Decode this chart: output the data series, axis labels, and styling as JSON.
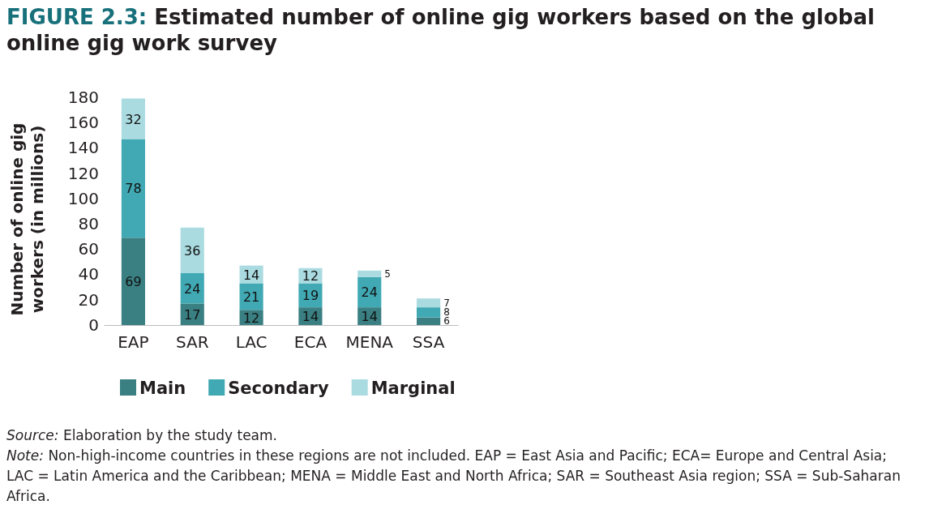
{
  "chart_data": {
    "type": "bar",
    "title": "FIGURE 2.3: Estimated number of online gig workers based on the global online gig work survey",
    "ylabel": "Number of online gig workers (in millions)",
    "categories": [
      "EAP",
      "SAR",
      "LAC",
      "ECA",
      "MENA",
      "SSA"
    ],
    "stacked": true,
    "data_labels": true,
    "legend": "bottom",
    "grid": false,
    "series": [
      {
        "name": "Main",
        "color": "#3a7f82",
        "values": [
          69,
          17,
          12,
          14,
          14,
          6
        ]
      },
      {
        "name": "Secondary",
        "color": "#41a9b4",
        "values": [
          78,
          24,
          21,
          19,
          24,
          8
        ]
      },
      {
        "name": "Marginal",
        "color": "#aadbe1",
        "values": [
          32,
          36,
          14,
          12,
          5,
          7
        ]
      }
    ],
    "ylim": [
      0,
      180
    ],
    "yticks": [
      0,
      20,
      40,
      60,
      80,
      100,
      120,
      140,
      160,
      180
    ],
    "annotations": [
      "Source: Elaboration by the study team.",
      "Note: Non-high-income countries in these regions are not included. EAP = East Asia and Pacific; ECA= Europe and Central Asia; LAC = Latin America and the Caribbean; MENA = Middle East and North Africa; SAR = Southeast Asia region; SSA = Sub-Saharan Africa."
    ]
  }
}
